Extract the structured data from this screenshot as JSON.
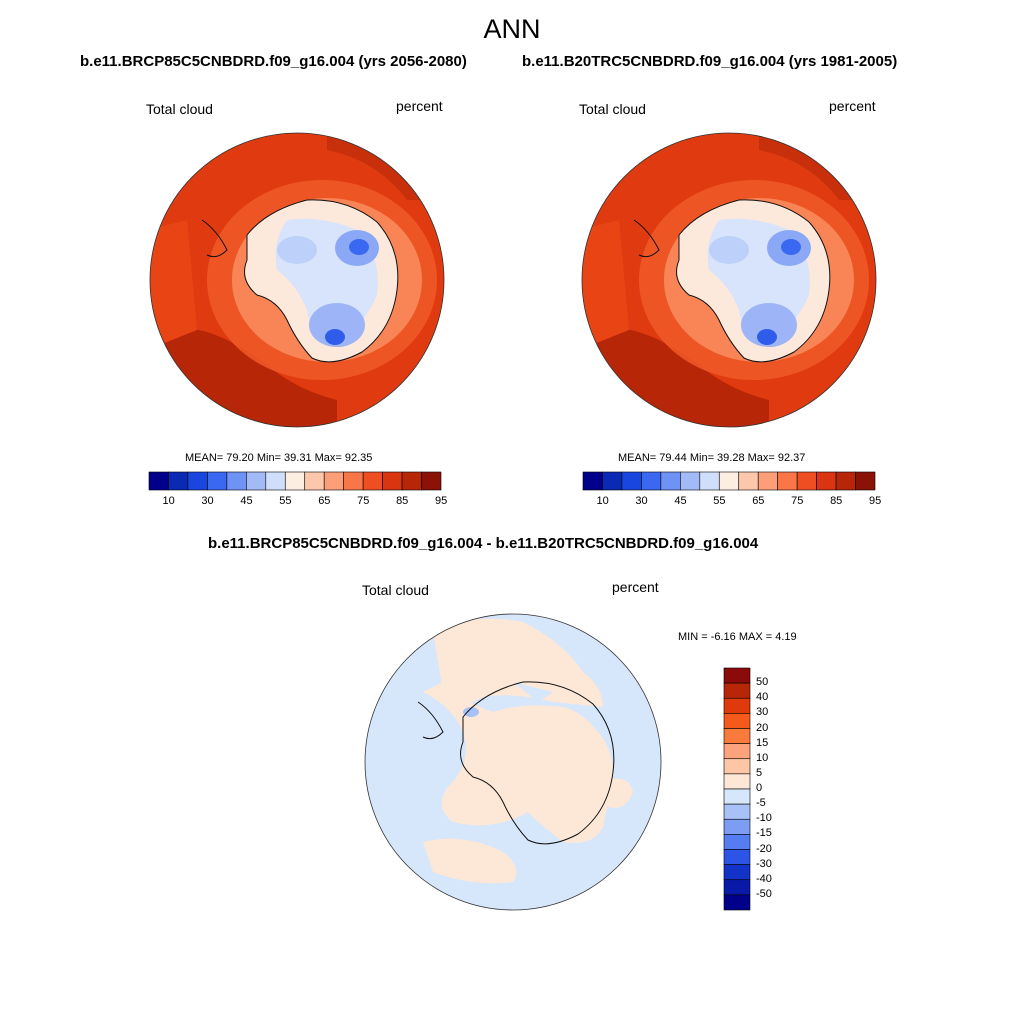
{
  "title": "ANN",
  "panels": [
    {
      "case_title": "b.e11.BRCP85C5CNBDRD.f09_g16.004 (yrs 2056-2080)",
      "variable": "Total cloud",
      "units": "percent",
      "stats": "MEAN=  79.20  Min=  39.31  Max=  92.35"
    },
    {
      "case_title": "b.e11.B20TRC5CNBDRD.f09_g16.004 (yrs 1981-2005)",
      "variable": "Total cloud",
      "units": "percent",
      "stats": "MEAN=  79.44  Min=  39.28  Max=  92.37"
    }
  ],
  "diff_panel": {
    "case_title": "b.e11.BRCP85C5CNBDRD.f09_g16.004 - b.e11.B20TRC5CNBDRD.f09_g16.004",
    "variable": "Total cloud",
    "units": "percent",
    "stats": "MIN =  -6.16 MAX =   4.19"
  },
  "colorbar_abs": {
    "labels": [
      "10",
      "30",
      "45",
      "55",
      "65",
      "75",
      "85",
      "95"
    ],
    "colors": [
      "#00008b",
      "#0a2ab5",
      "#1a46e0",
      "#3a68f0",
      "#6f92f5",
      "#a2bbf7",
      "#cfdefa",
      "#fdeee2",
      "#fcc7ab",
      "#fc9e78",
      "#f97648",
      "#ef4e22",
      "#d93510",
      "#b82608",
      "#8b1206"
    ]
  },
  "colorbar_diff": {
    "labels": [
      "50",
      "40",
      "30",
      "20",
      "15",
      "10",
      "5",
      "0",
      "-5",
      "-10",
      "-15",
      "-20",
      "-30",
      "-40",
      "-50"
    ],
    "colors": [
      "#8b0a0a",
      "#b82608",
      "#e03a0c",
      "#f55a1c",
      "#fa7a3c",
      "#fca27c",
      "#fdc6a6",
      "#fde8d8",
      "#d6e6fb",
      "#a8c2f7",
      "#7d9df3",
      "#557cf0",
      "#2c55e8",
      "#1232c8",
      "#0a1aa8",
      "#00008b"
    ]
  }
}
